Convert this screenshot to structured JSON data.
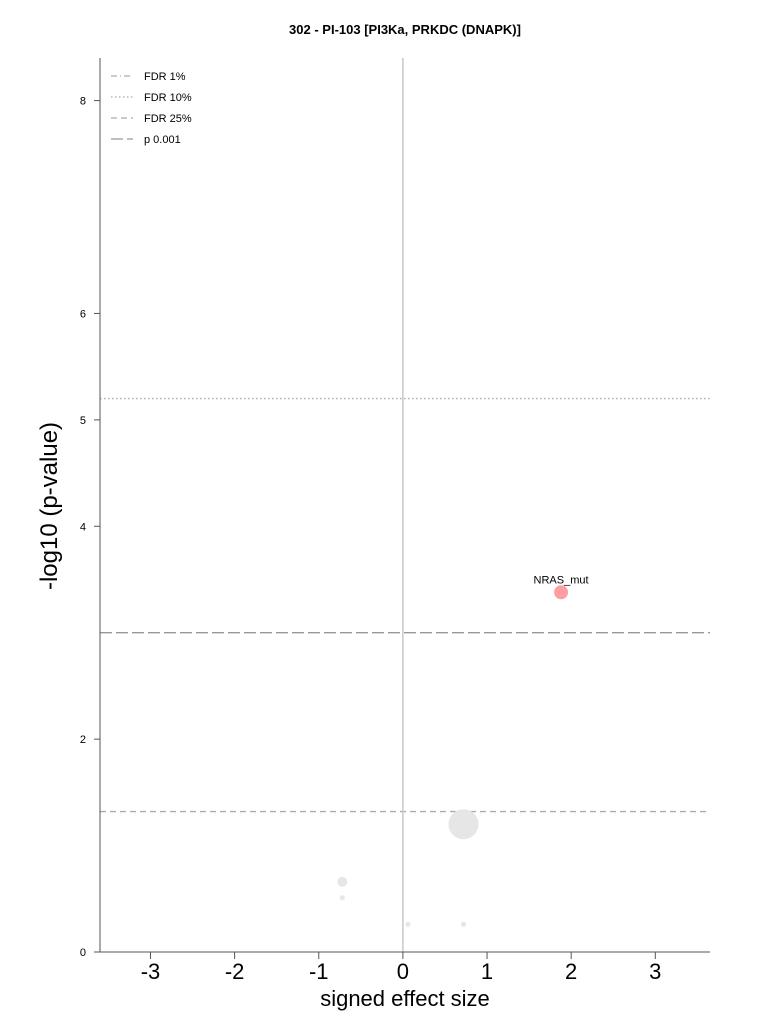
{
  "chart_data": {
    "type": "scatter",
    "title": "302 - PI-103 [PI3Ka, PRKDC (DNAPK)]",
    "xlabel": "signed effect size",
    "ylabel": "-log10 (p-value)",
    "xlim": [
      -3.6,
      3.65
    ],
    "ylim": [
      0,
      8.4
    ],
    "xticks": [
      -3,
      -2,
      -1,
      0,
      1,
      2,
      3
    ],
    "yticks": [
      0,
      2,
      4,
      5,
      6,
      8
    ],
    "grid": false,
    "legend_position": "top-left",
    "threshold_lines": [
      {
        "name": "FDR 1%",
        "style": "dashdot",
        "y": null
      },
      {
        "name": "FDR 10%",
        "style": "dotted",
        "y": 5.2
      },
      {
        "name": "FDR 25%",
        "style": "dashed",
        "y": 1.32
      },
      {
        "name": "p 0.001",
        "style": "longdash",
        "y": 3.0
      }
    ],
    "points": [
      {
        "x": 1.88,
        "y": 3.38,
        "size": 7,
        "color": "#ff9ea2",
        "label": "NRAS_mut"
      },
      {
        "x": 0.72,
        "y": 1.2,
        "size": 15,
        "color": "#e6e6e6",
        "label": ""
      },
      {
        "x": -0.72,
        "y": 0.66,
        "size": 5,
        "color": "#e6e6e6",
        "label": ""
      },
      {
        "x": -0.72,
        "y": 0.51,
        "size": 2.5,
        "color": "#e6e6e6",
        "label": ""
      },
      {
        "x": 0.06,
        "y": 0.26,
        "size": 2.5,
        "color": "#e6e6e6",
        "label": ""
      },
      {
        "x": 0.72,
        "y": 0.26,
        "size": 2.5,
        "color": "#e6e6e6",
        "label": ""
      }
    ]
  }
}
